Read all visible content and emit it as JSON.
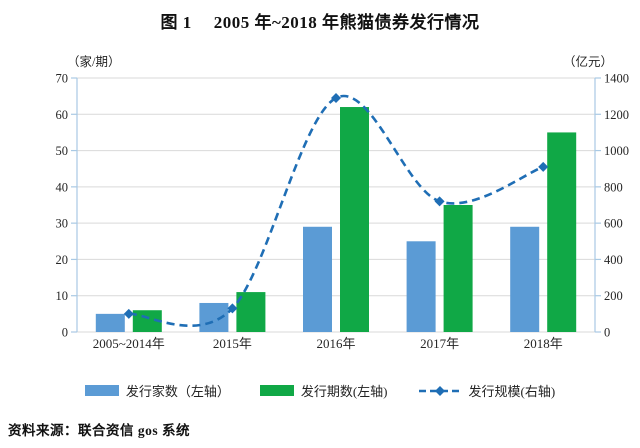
{
  "title": {
    "figure_label": "图 1",
    "main": "2005 年~2018 年熊猫债券发行情况"
  },
  "source": "资料来源：联合资信 gos 系统",
  "colors": {
    "bar_blue": "#5B9BD5",
    "bar_green": "#10A846",
    "line_blue": "#1F6EB5",
    "gridline": "#D9D9D9",
    "axis_line": "#A9C9E4",
    "text": "#262626"
  },
  "chart_data": {
    "type": "bar",
    "subtype": "combo-bar-line-dual-axis",
    "categories": [
      "2005~2014年",
      "2015年",
      "2016年",
      "2017年",
      "2018年"
    ],
    "series": [
      {
        "name": "发行家数（左轴）",
        "type": "bar",
        "axis": "left",
        "color": "#5B9BD5",
        "values": [
          5,
          8,
          29,
          25,
          29
        ]
      },
      {
        "name": "发行期数(左轴)",
        "type": "bar",
        "axis": "left",
        "color": "#10A846",
        "values": [
          6,
          11,
          62,
          35,
          55
        ]
      },
      {
        "name": "发行规模(右轴)",
        "type": "line",
        "axis": "right",
        "color": "#1F6EB5",
        "style": "dashed",
        "marker": "diamond",
        "smooth": true,
        "values": [
          100,
          130,
          1290,
          720,
          910
        ]
      }
    ],
    "left_axis": {
      "unit": "（家/期）",
      "min": 0,
      "max": 70,
      "step": 10,
      "ticks": [
        0,
        10,
        20,
        30,
        40,
        50,
        60,
        70
      ]
    },
    "right_axis": {
      "unit": "（亿元）",
      "min": 0,
      "max": 1400,
      "step": 200,
      "ticks": [
        0,
        200,
        400,
        600,
        800,
        1000,
        1200,
        1400
      ]
    },
    "grid": true,
    "legend_position": "bottom"
  }
}
